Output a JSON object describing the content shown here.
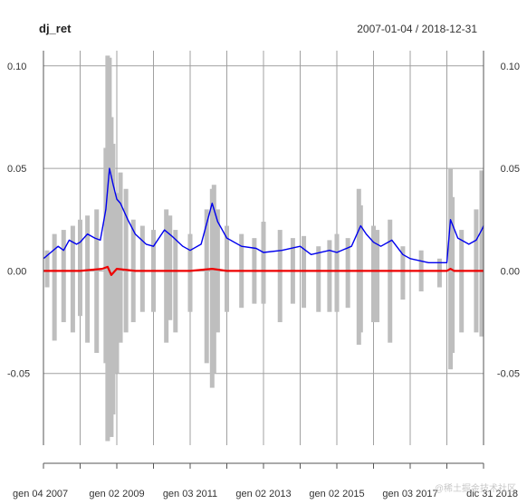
{
  "header": {
    "title": "dj_ret",
    "date_range": "2007-01-04 / 2018-12-31"
  },
  "watermark": "@稀土掘金技术社区",
  "chart_data": {
    "type": "line",
    "title": "dj_ret",
    "subtitle": "2007-01-04 / 2018-12-31",
    "xlabel": "",
    "ylabel": "",
    "x_start": 2007.0,
    "x_end": 2019.0,
    "xlim": [
      2007.0,
      2019.0
    ],
    "ylim": [
      -0.085,
      0.103
    ],
    "y_ticks": [
      {
        "value": 0.1,
        "label": "0.10"
      },
      {
        "value": 0.05,
        "label": "0.05"
      },
      {
        "value": 0.0,
        "label": "0.00"
      },
      {
        "value": -0.05,
        "label": "-0.05"
      }
    ],
    "x_tick_labels": [
      "gen 04 2007",
      "gen 02 2009",
      "gen 03 2011",
      "gen 02 2013",
      "gen 02 2015",
      "gen 03 2017",
      "dic 31 2018"
    ],
    "x_tick_values": [
      2007.0,
      2009.0,
      2011.0,
      2013.0,
      2015.0,
      2017.0,
      2019.0
    ],
    "grid": true,
    "legend": "none",
    "colors": {
      "returns": "#bebebe",
      "volatility": "#0000ee",
      "mean": "#ee0000",
      "grid": "#a0a0a0",
      "axis": "#555555"
    },
    "series": [
      {
        "key": "returns",
        "type": "bars",
        "color": "#bebebe",
        "x": [
          2007.1,
          2007.3,
          2007.55,
          2007.8,
          2008.0,
          2008.2,
          2008.45,
          2008.7,
          2008.75,
          2008.8,
          2008.85,
          2008.9,
          2009.0,
          2009.1,
          2009.25,
          2009.45,
          2009.7,
          2010.0,
          2010.35,
          2010.45,
          2010.6,
          2011.0,
          2011.45,
          2011.6,
          2011.65,
          2011.75,
          2012.0,
          2012.4,
          2012.75,
          2013.0,
          2013.45,
          2013.8,
          2014.1,
          2014.5,
          2014.8,
          2015.0,
          2015.3,
          2015.6,
          2015.65,
          2016.0,
          2016.1,
          2016.45,
          2016.8,
          2017.3,
          2017.8,
          2018.1,
          2018.15,
          2018.4,
          2018.8,
          2018.95
        ],
        "high": [
          0.01,
          0.018,
          0.02,
          0.022,
          0.025,
          0.027,
          0.03,
          0.06,
          0.105,
          0.104,
          0.075,
          0.062,
          0.038,
          0.048,
          0.04,
          0.025,
          0.022,
          0.02,
          0.03,
          0.027,
          0.02,
          0.018,
          0.03,
          0.04,
          0.042,
          0.03,
          0.022,
          0.018,
          0.016,
          0.024,
          0.02,
          0.016,
          0.017,
          0.012,
          0.015,
          0.018,
          0.016,
          0.04,
          0.032,
          0.022,
          0.02,
          0.025,
          0.012,
          0.01,
          0.006,
          0.05,
          0.036,
          0.02,
          0.03,
          0.049
        ],
        "low": [
          -0.008,
          -0.034,
          -0.025,
          -0.03,
          -0.022,
          -0.035,
          -0.04,
          -0.045,
          -0.083,
          -0.079,
          -0.081,
          -0.07,
          -0.05,
          -0.035,
          -0.03,
          -0.025,
          -0.02,
          -0.02,
          -0.035,
          -0.024,
          -0.03,
          -0.02,
          -0.045,
          -0.057,
          -0.05,
          -0.03,
          -0.02,
          -0.018,
          -0.016,
          -0.016,
          -0.025,
          -0.016,
          -0.018,
          -0.02,
          -0.02,
          -0.02,
          -0.018,
          -0.036,
          -0.03,
          -0.025,
          -0.025,
          -0.035,
          -0.014,
          -0.01,
          -0.008,
          -0.048,
          -0.04,
          -0.03,
          -0.03,
          -0.032
        ]
      },
      {
        "key": "volatility",
        "name": "",
        "type": "line",
        "color": "#0000ee",
        "x": [
          2007.0,
          2007.2,
          2007.4,
          2007.55,
          2007.7,
          2007.9,
          2008.0,
          2008.2,
          2008.4,
          2008.55,
          2008.7,
          2008.8,
          2008.9,
          2009.0,
          2009.1,
          2009.3,
          2009.5,
          2009.8,
          2010.0,
          2010.3,
          2010.5,
          2010.8,
          2011.0,
          2011.3,
          2011.6,
          2011.75,
          2012.0,
          2012.4,
          2012.8,
          2013.0,
          2013.5,
          2014.0,
          2014.3,
          2014.8,
          2015.0,
          2015.4,
          2015.65,
          2015.8,
          2016.0,
          2016.2,
          2016.5,
          2016.8,
          2017.0,
          2017.5,
          2018.0,
          2018.1,
          2018.3,
          2018.6,
          2018.8,
          2018.95,
          2019.0
        ],
        "y": [
          0.006,
          0.009,
          0.012,
          0.01,
          0.015,
          0.013,
          0.014,
          0.018,
          0.016,
          0.015,
          0.03,
          0.05,
          0.042,
          0.035,
          0.033,
          0.025,
          0.018,
          0.013,
          0.012,
          0.02,
          0.017,
          0.012,
          0.01,
          0.013,
          0.033,
          0.024,
          0.016,
          0.012,
          0.011,
          0.009,
          0.01,
          0.012,
          0.008,
          0.01,
          0.009,
          0.012,
          0.022,
          0.018,
          0.014,
          0.012,
          0.015,
          0.008,
          0.006,
          0.004,
          0.004,
          0.025,
          0.016,
          0.013,
          0.015,
          0.02,
          0.022
        ]
      },
      {
        "key": "mean",
        "name": "",
        "type": "line",
        "color": "#ee0000",
        "x": [
          2007.0,
          2008.0,
          2008.6,
          2008.75,
          2008.85,
          2009.0,
          2009.5,
          2010.0,
          2011.0,
          2011.6,
          2012.0,
          2014.0,
          2016.0,
          2018.0,
          2018.1,
          2018.2,
          2019.0
        ],
        "y": [
          0.0,
          0.0,
          0.001,
          0.002,
          -0.002,
          0.001,
          0.0,
          0.0,
          0.0,
          0.001,
          0.0,
          0.0,
          0.0,
          0.0,
          0.001,
          0.0,
          0.0
        ]
      }
    ]
  }
}
